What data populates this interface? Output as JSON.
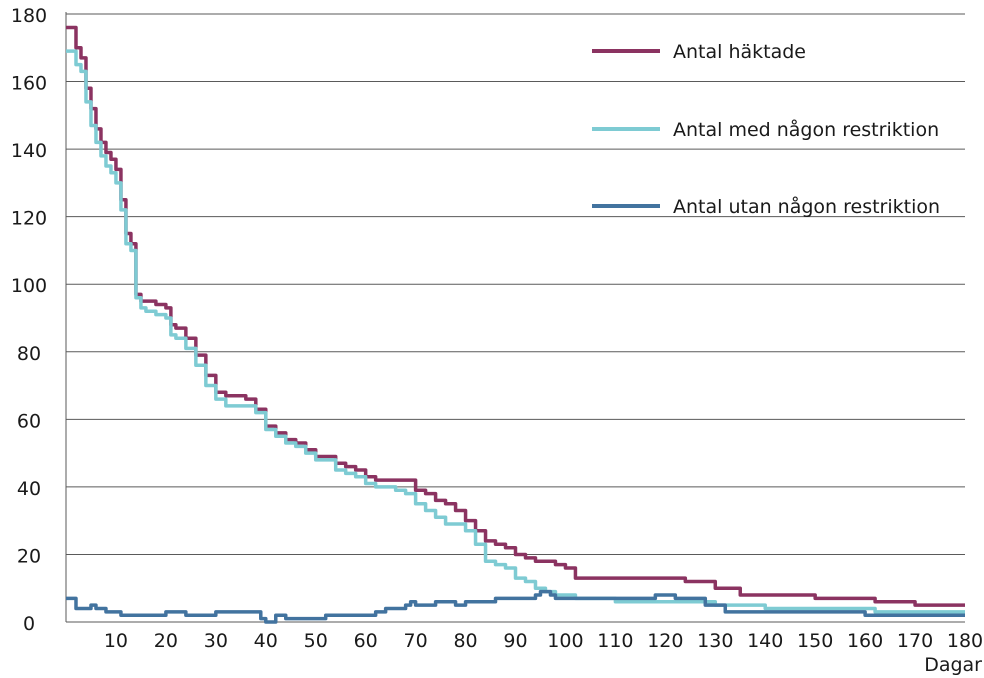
{
  "chart_data": {
    "type": "line",
    "xlabel": "Dagar",
    "ylabel": "",
    "xlim": [
      0,
      180
    ],
    "ylim": [
      0,
      180
    ],
    "x_ticks": [
      10,
      20,
      30,
      40,
      50,
      60,
      70,
      80,
      90,
      100,
      110,
      120,
      130,
      140,
      150,
      160,
      170,
      180
    ],
    "y_ticks": [
      0,
      20,
      40,
      60,
      80,
      100,
      120,
      140,
      160,
      180
    ],
    "grid": "horizontal",
    "legend_position": "top-right",
    "series": [
      {
        "name": "Antal häktade",
        "color": "#8b3361",
        "x": [
          0,
          1,
          2,
          3,
          4,
          5,
          6,
          7,
          8,
          9,
          10,
          11,
          12,
          13,
          14,
          15,
          16,
          18,
          20,
          21,
          22,
          24,
          26,
          28,
          30,
          32,
          34,
          36,
          38,
          40,
          42,
          44,
          46,
          48,
          50,
          52,
          54,
          56,
          58,
          60,
          62,
          64,
          66,
          68,
          70,
          72,
          74,
          76,
          78,
          80,
          82,
          84,
          86,
          88,
          90,
          92,
          94,
          96,
          98,
          100,
          102,
          104,
          110,
          120,
          124,
          130,
          135,
          140,
          150,
          160,
          162,
          170,
          180
        ],
        "values": [
          176,
          176,
          170,
          167,
          158,
          152,
          146,
          142,
          139,
          137,
          134,
          125,
          115,
          112,
          97,
          95,
          95,
          94,
          93,
          88,
          87,
          84,
          79,
          73,
          68,
          67,
          67,
          66,
          63,
          58,
          56,
          54,
          53,
          51,
          49,
          49,
          47,
          46,
          45,
          43,
          42,
          42,
          42,
          42,
          39,
          38,
          36,
          35,
          33,
          30,
          27,
          24,
          23,
          22,
          20,
          19,
          18,
          18,
          17,
          16,
          13,
          13,
          13,
          13,
          12,
          10,
          8,
          8,
          7,
          7,
          6,
          5,
          5
        ]
      },
      {
        "name": "Antal med någon restriktion",
        "color": "#7ecbd3",
        "x": [
          0,
          1,
          2,
          3,
          4,
          5,
          6,
          7,
          8,
          9,
          10,
          11,
          12,
          13,
          14,
          15,
          16,
          18,
          20,
          21,
          22,
          24,
          26,
          28,
          30,
          32,
          34,
          36,
          38,
          40,
          42,
          44,
          46,
          48,
          50,
          52,
          54,
          56,
          58,
          60,
          62,
          64,
          66,
          68,
          70,
          72,
          74,
          76,
          78,
          80,
          82,
          84,
          86,
          88,
          90,
          92,
          94,
          96,
          98,
          100,
          102,
          104,
          110,
          120,
          124,
          130,
          135,
          140,
          150,
          160,
          162,
          170,
          180
        ],
        "values": [
          169,
          169,
          165,
          163,
          154,
          147,
          142,
          138,
          135,
          133,
          130,
          122,
          112,
          110,
          96,
          93,
          92,
          91,
          90,
          85,
          84,
          81,
          76,
          70,
          66,
          64,
          64,
          64,
          62,
          57,
          55,
          53,
          52,
          50,
          48,
          48,
          45,
          44,
          43,
          41,
          40,
          40,
          39,
          38,
          35,
          33,
          31,
          29,
          29,
          27,
          23,
          18,
          17,
          16,
          13,
          12,
          10,
          9,
          8,
          8,
          7,
          7,
          6,
          6,
          6,
          5,
          5,
          4,
          4,
          4,
          3,
          3,
          3
        ]
      },
      {
        "name": "Antal utan någon restriktion",
        "color": "#42739f",
        "x": [
          0,
          1,
          2,
          3,
          4,
          5,
          6,
          7,
          8,
          9,
          10,
          11,
          12,
          14,
          16,
          18,
          20,
          22,
          24,
          26,
          28,
          30,
          32,
          34,
          36,
          38,
          39,
          40,
          41,
          42,
          44,
          46,
          48,
          50,
          52,
          54,
          56,
          58,
          60,
          62,
          64,
          66,
          68,
          69,
          70,
          72,
          74,
          76,
          78,
          80,
          82,
          84,
          86,
          88,
          90,
          92,
          94,
          95,
          96,
          97,
          98,
          100,
          104,
          110,
          117,
          118,
          120,
          122,
          124,
          128,
          130,
          132,
          140,
          150,
          159,
          160,
          170,
          180
        ],
        "values": [
          7,
          7,
          4,
          4,
          4,
          5,
          4,
          4,
          3,
          3,
          3,
          2,
          2,
          2,
          2,
          2,
          3,
          3,
          2,
          2,
          2,
          3,
          3,
          3,
          3,
          3,
          1,
          0,
          0,
          2,
          1,
          1,
          1,
          1,
          2,
          2,
          2,
          2,
          2,
          3,
          4,
          4,
          5,
          6,
          5,
          5,
          6,
          6,
          5,
          6,
          6,
          6,
          7,
          7,
          7,
          7,
          8,
          9,
          9,
          8,
          7,
          7,
          7,
          7,
          7,
          8,
          8,
          7,
          7,
          5,
          5,
          3,
          3,
          3,
          3,
          2,
          2,
          2
        ]
      }
    ]
  }
}
